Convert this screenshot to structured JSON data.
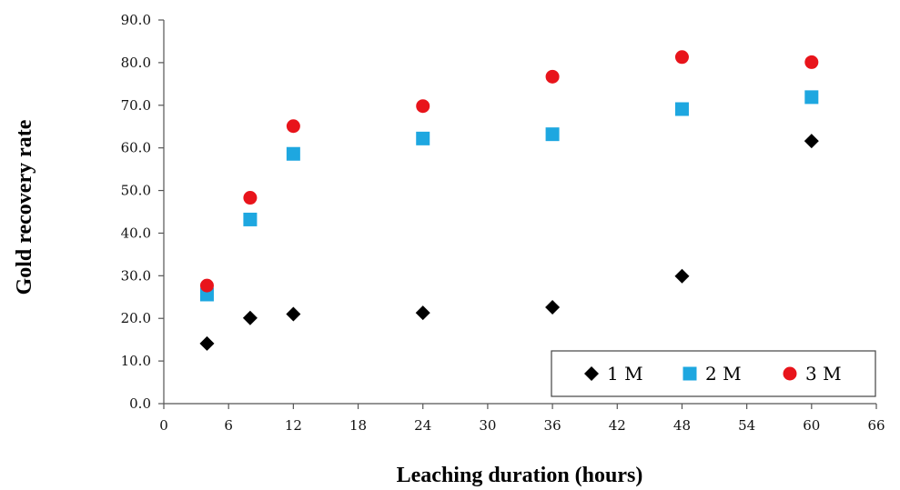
{
  "chart_data": {
    "type": "scatter",
    "xlabel": "Leaching duration (hours)",
    "ylabel": "Gold recovery rate",
    "xlim": [
      0,
      66
    ],
    "ylim": [
      0,
      90
    ],
    "x_ticks": [
      "0",
      "6",
      "12",
      "18",
      "24",
      "30",
      "36",
      "42",
      "48",
      "54",
      "60",
      "66"
    ],
    "y_ticks": [
      "0.0",
      "10.0",
      "20.0",
      "30.0",
      "40.0",
      "50.0",
      "60.0",
      "70.0",
      "80.0",
      "90.0"
    ],
    "grid": false,
    "legend_position": "bottom-right",
    "series": [
      {
        "name": "1 M",
        "marker": "diamond",
        "color": "#000000",
        "points": [
          [
            4,
            14.1
          ],
          [
            8,
            20.1
          ],
          [
            12,
            21.0
          ],
          [
            24,
            21.3
          ],
          [
            36,
            22.6
          ],
          [
            48,
            29.9
          ],
          [
            60,
            61.6
          ]
        ]
      },
      {
        "name": "2 M",
        "marker": "square",
        "color": "#1ea7e0",
        "points": [
          [
            4,
            25.6
          ],
          [
            8,
            43.2
          ],
          [
            12,
            58.6
          ],
          [
            24,
            62.2
          ],
          [
            36,
            63.2
          ],
          [
            48,
            69.1
          ],
          [
            60,
            71.9
          ]
        ]
      },
      {
        "name": "3 M",
        "marker": "circle",
        "color": "#e8141b",
        "points": [
          [
            4,
            27.7
          ],
          [
            8,
            48.3
          ],
          [
            12,
            65.1
          ],
          [
            24,
            69.8
          ],
          [
            36,
            76.7
          ],
          [
            48,
            81.3
          ],
          [
            60,
            80.1
          ]
        ]
      }
    ]
  }
}
